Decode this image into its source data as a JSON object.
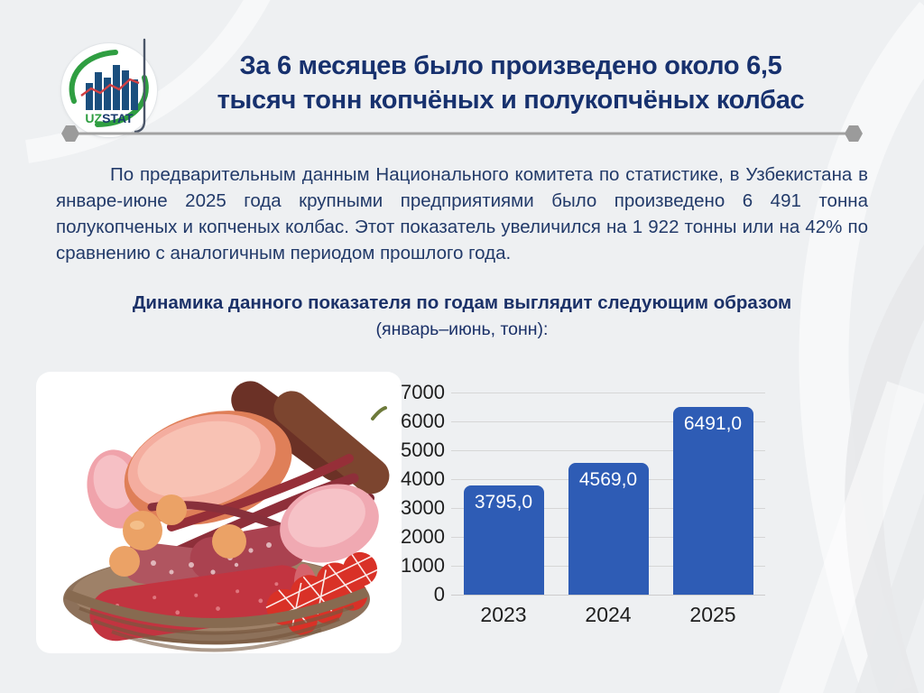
{
  "colors": {
    "background": "#eef0f2",
    "title_text": "#17316e",
    "body_text": "#223a69",
    "divider_gray": "#a2a2a2",
    "bar_blue": "#2e5cb5",
    "logo_green": "#2f9e41",
    "logo_navy": "#1a3b6e",
    "logo_red": "#d24043"
  },
  "logo": {
    "uz": "UZ",
    "stat": "STAT"
  },
  "header": {
    "title_line1": "За 6 месяцев было произведено около 6,5",
    "title_line2": "тысяч тонн копчёных и полукопчёных колбас"
  },
  "intro": {
    "text": "По предварительным данным Национального комитета по статистике, в Узбекистана в январе-июне 2025 года крупными предприятиями было произведено 6 491 тонна полукопченых и копченых колбас. Этот показатель увеличился на 1 922 тонны или на 42% по сравнению с аналогичным периодом прошлого года."
  },
  "section": {
    "heading": "Динамика данного показателя по годам выглядит следующим образом",
    "subheading": "(январь–июнь, тонн):"
  },
  "chart_data": {
    "type": "bar",
    "categories": [
      "2023",
      "2024",
      "2025"
    ],
    "values": [
      3795.0,
      4569.0,
      6491.0
    ],
    "value_labels": [
      "3795,0",
      "4569,0",
      "6491,0"
    ],
    "title": "",
    "xlabel": "",
    "ylabel": "",
    "ylim": [
      0,
      7000
    ],
    "ytick_step": 1000,
    "grid": true,
    "legend": false,
    "bar_color": "#2e5cb5",
    "value_label_color": "#ffffff"
  }
}
